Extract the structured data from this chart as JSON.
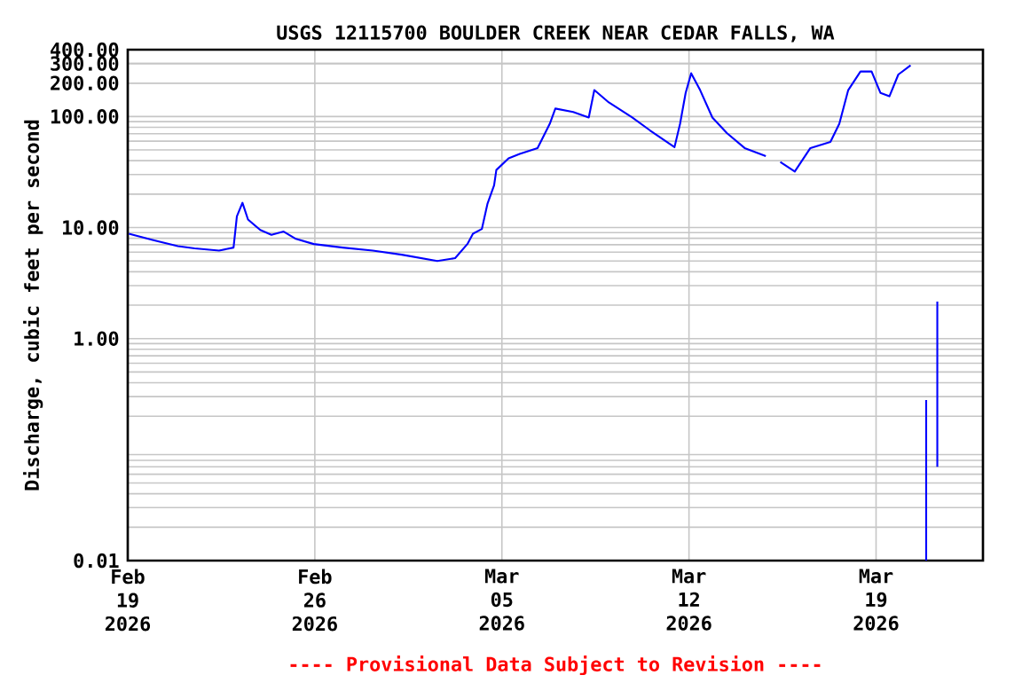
{
  "chart_data": {
    "type": "line",
    "title": "USGS 12115700 BOULDER CREEK NEAR CEDAR FALLS, WA",
    "ylabel": "Discharge, cubic feet per second",
    "annotations": [
      "---- Provisional Data Subject to Revision ----"
    ],
    "log": "y",
    "grid": true,
    "marker": "none",
    "line_style": "solid",
    "xlim": [
      "2026-02-19T00:00",
      "2026-03-23T00:00"
    ],
    "xticks": [
      {
        "value": "2026-02-19",
        "label": "Feb 19 2026"
      },
      {
        "value": "2026-02-26",
        "label": "Feb 26 2026"
      },
      {
        "value": "2026-03-05",
        "label": "Mar 05 2026"
      },
      {
        "value": "2026-03-12",
        "label": "Mar 12 2026"
      },
      {
        "value": "2026-03-19",
        "label": "Mar 19 2026"
      }
    ],
    "ylim": [
      0.01,
      400
    ],
    "yticks": [
      {
        "value": 0.01,
        "label": "0.01"
      },
      {
        "value": 1,
        "label": "1.00"
      },
      {
        "value": 10,
        "label": "10.00"
      },
      {
        "value": 100,
        "label": "100.00"
      },
      {
        "value": 200,
        "label": "200.00"
      },
      {
        "value": 300,
        "label": "300.00"
      },
      {
        "value": 400,
        "label": "400.00"
      }
    ],
    "series": [
      {
        "color": "#0000ff",
        "x": [
          "2026-02-19T01:00",
          "2026-02-19T23:00",
          "2026-02-20T21:00",
          "2026-02-21T12:00",
          "2026-02-22T10:00",
          "2026-02-22T23:00",
          "2026-02-23T02:00",
          "2026-02-23T07:00",
          "2026-02-23T12:00",
          "2026-02-23T23:00",
          "2026-02-24T09:00",
          "2026-02-24T20:00",
          "2026-02-25T07:00",
          "2026-02-25T23:00",
          "2026-02-27T01:00",
          "2026-02-28T04:00",
          "2026-03-01T06:00",
          "2026-03-02T14:00",
          "2026-03-03T06:00",
          "2026-03-03T17:00",
          "2026-03-03T22:00",
          "2026-03-04T06:00",
          "2026-03-04T11:00",
          "2026-03-04T17:00",
          "2026-03-04T19:00",
          "2026-03-05T06:00",
          "2026-03-05T16:00",
          "2026-03-06T08:00",
          "2026-03-06T19:00",
          "2026-03-07T00:00",
          "2026-03-07T16:00",
          "2026-03-08T06:00",
          "2026-03-08T11:00",
          "2026-03-09T00:00",
          "2026-03-09T21:00",
          "2026-03-10T13:00",
          "2026-03-11T11:00",
          "2026-03-11T16:00",
          "2026-03-11T21:00",
          "2026-03-12T02:00",
          "2026-03-12T10:00",
          "2026-03-12T21:00",
          "2026-03-13T10:00",
          "2026-03-14T02:00",
          "2026-03-14T21:00",
          "2026-03-15T06:00",
          "2026-03-15T10:00",
          "2026-03-15T23:00",
          "2026-03-16T13:00",
          "2026-03-17T07:00",
          "2026-03-17T15:00",
          "2026-03-17T23:00",
          "2026-03-18T10:00",
          "2026-03-18T20:00",
          "2026-03-19T04:00",
          "2026-03-19T12:00",
          "2026-03-19T20:00",
          "2026-03-20T07:00",
          "2026-03-20T12:00",
          "2026-03-20T21:00",
          "2026-03-20T21:00",
          "2026-03-21T00:00",
          "2026-03-21T07:00",
          "2026-03-21T07:00"
        ],
        "values": [
          8.8,
          7.7,
          6.8,
          6.5,
          6.2,
          6.6,
          12.6,
          16.7,
          11.8,
          9.5,
          8.6,
          9.2,
          7.9,
          7.1,
          6.6,
          6.2,
          5.7,
          5.0,
          5.3,
          7.1,
          8.8,
          9.7,
          16.3,
          24,
          33,
          42,
          46,
          52,
          86,
          118,
          110,
          98,
          173,
          134,
          98,
          75,
          53,
          86,
          163,
          245,
          173,
          98,
          71,
          52,
          44,
          null,
          39,
          32,
          52,
          59,
          86,
          173,
          254,
          254,
          163,
          152,
          239,
          289,
          null,
          0.28,
          0.01,
          null,
          2.15,
          0.07
        ]
      }
    ]
  }
}
